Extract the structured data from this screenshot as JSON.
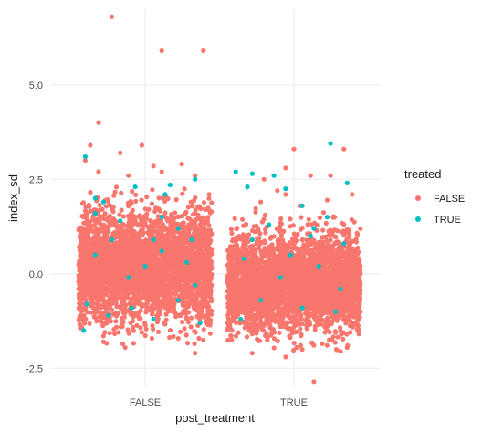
{
  "chart_data": {
    "type": "scatter",
    "subtype": "jitter",
    "xlabel": "post_treatment",
    "ylabel": "index_sd",
    "categories": [
      "FALSE",
      "TRUE"
    ],
    "yticks": [
      -2.5,
      0.0,
      2.5,
      5.0
    ],
    "ytick_labels": [
      "-2.5",
      "0.0",
      "2.5",
      "5.0"
    ],
    "ylim": [
      -3.0,
      7.0
    ],
    "grid": true,
    "theme": "minimal",
    "legend": {
      "title": "treated",
      "position": "right",
      "entries": [
        {
          "label": "FALSE",
          "color": "#F8766D"
        },
        {
          "label": "TRUE",
          "color": "#00BFC4"
        }
      ]
    },
    "series": [
      {
        "name": "FALSE",
        "color": "#F8766D",
        "groups": [
          {
            "category": "FALSE",
            "bulk": {
              "count": 3500,
              "mean": 0.2,
              "sd": 0.72,
              "min": -1.9,
              "max": 2.35
            },
            "outliers": [
              [
                -0.2,
                6.8
              ],
              [
                0.1,
                5.9
              ],
              [
                0.35,
                5.9
              ],
              [
                -0.28,
                4.0
              ],
              [
                -0.02,
                3.4
              ],
              [
                -0.33,
                3.4
              ],
              [
                -0.36,
                3.0
              ],
              [
                -0.28,
                2.7
              ],
              [
                0.22,
                2.9
              ],
              [
                -0.15,
                3.2
              ],
              [
                0.05,
                2.85
              ],
              [
                0.3,
                2.6
              ],
              [
                -0.1,
                2.6
              ],
              [
                0.1,
                2.7
              ],
              [
                0.3,
                -2.1
              ],
              [
                -0.25,
                -1.8
              ],
              [
                0.35,
                -1.75
              ],
              [
                -0.12,
                -1.95
              ]
            ]
          },
          {
            "category": "TRUE",
            "bulk": {
              "count": 3500,
              "mean": -0.25,
              "sd": 0.62,
              "min": -2.05,
              "max": 1.9
            },
            "outliers": [
              [
                0.0,
                3.3
              ],
              [
                0.3,
                3.3
              ],
              [
                0.22,
                2.6
              ],
              [
                -0.05,
                2.8
              ],
              [
                -0.18,
                2.5
              ],
              [
                0.1,
                2.6
              ],
              [
                -0.1,
                2.2
              ],
              [
                0.35,
                2.1
              ],
              [
                -0.2,
                1.9
              ],
              [
                0.2,
                1.95
              ],
              [
                -0.05,
                2.1
              ],
              [
                0.12,
                -2.85
              ],
              [
                -0.05,
                -2.2
              ],
              [
                0.05,
                -2.0
              ],
              [
                -0.25,
                -2.1
              ],
              [
                0.28,
                -2.05
              ],
              [
                0.32,
                -1.95
              ]
            ]
          }
        ]
      },
      {
        "name": "TRUE",
        "color": "#00BFC4",
        "groups": [
          {
            "category": "FALSE",
            "points": [
              [
                -0.36,
                3.1
              ],
              [
                0.3,
                2.5
              ],
              [
                -0.06,
                2.3
              ],
              [
                0.15,
                2.35
              ],
              [
                -0.25,
                1.9
              ],
              [
                0.1,
                1.5
              ],
              [
                -0.3,
                1.6
              ],
              [
                0.2,
                1.2
              ],
              [
                -0.15,
                1.4
              ],
              [
                0.05,
                0.9
              ],
              [
                0.25,
                0.3
              ],
              [
                -0.3,
                0.5
              ],
              [
                0.1,
                0.6
              ],
              [
                -0.1,
                -0.1
              ],
              [
                0.3,
                -0.3
              ],
              [
                -0.35,
                -0.8
              ],
              [
                -0.08,
                -0.9
              ],
              [
                0.2,
                -0.7
              ],
              [
                0.05,
                -1.2
              ],
              [
                -0.22,
                -1.1
              ],
              [
                0.33,
                -1.3
              ],
              [
                -0.37,
                -1.5
              ],
              [
                0.0,
                0.2
              ],
              [
                -0.2,
                0.9
              ],
              [
                0.28,
                0.9
              ],
              [
                -0.3,
                2.0
              ],
              [
                0.12,
                2.1
              ]
            ]
          },
          {
            "category": "TRUE",
            "points": [
              [
                0.22,
                3.45
              ],
              [
                0.32,
                2.4
              ],
              [
                -0.35,
                2.7
              ],
              [
                -0.25,
                2.65
              ],
              [
                -0.12,
                2.6
              ],
              [
                -0.05,
                2.25
              ],
              [
                -0.28,
                2.3
              ],
              [
                0.05,
                1.8
              ],
              [
                -0.15,
                1.3
              ],
              [
                0.2,
                1.5
              ],
              [
                0.1,
                1.0
              ],
              [
                -0.25,
                0.9
              ],
              [
                0.3,
                0.8
              ],
              [
                -0.3,
                0.4
              ],
              [
                0.15,
                0.2
              ],
              [
                -0.08,
                -0.1
              ],
              [
                0.28,
                -0.4
              ],
              [
                -0.2,
                -0.7
              ],
              [
                0.05,
                -0.9
              ],
              [
                0.25,
                -1.0
              ],
              [
                -0.32,
                -1.2
              ],
              [
                0.12,
                1.2
              ],
              [
                -0.02,
                0.5
              ]
            ]
          }
        ]
      }
    ]
  }
}
